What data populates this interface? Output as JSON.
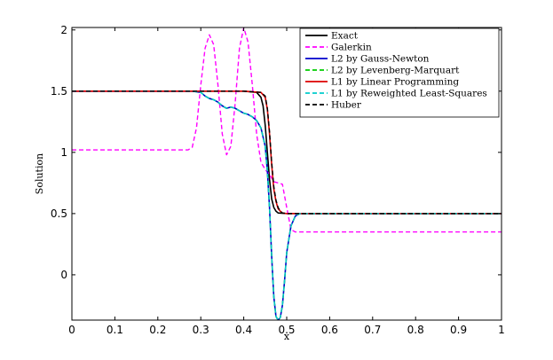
{
  "chart_data": {
    "type": "line",
    "xlabel": "x",
    "ylabel": "Solution",
    "xlim": [
      0,
      1
    ],
    "ylim": [
      -0.37,
      2.02
    ],
    "xticks": [
      "0",
      "0.1",
      "0.2",
      "0.3",
      "0.4",
      "0.5",
      "0.6",
      "0.7",
      "0.8",
      "0.9",
      "1"
    ],
    "yticks": [
      "0",
      "0.5",
      "1",
      "1.5",
      "2"
    ],
    "grid": false,
    "legend_position": "top-right",
    "series": [
      {
        "name": "Exact",
        "color": "#000000",
        "dash": "solid",
        "x": [
          0,
          0.1,
          0.2,
          0.3,
          0.4,
          0.43,
          0.44,
          0.445,
          0.45,
          0.455,
          0.46,
          0.465,
          0.47,
          0.475,
          0.48,
          0.5,
          0.6,
          0.8,
          1.0
        ],
        "y": [
          1.5,
          1.5,
          1.5,
          1.5,
          1.5,
          1.49,
          1.45,
          1.38,
          1.22,
          1.0,
          0.78,
          0.62,
          0.55,
          0.52,
          0.505,
          0.5,
          0.5,
          0.5,
          0.5
        ]
      },
      {
        "name": "Galerkin",
        "color": "#ff00ff",
        "dash": "dashed",
        "x": [
          0,
          0.1,
          0.2,
          0.27,
          0.28,
          0.29,
          0.3,
          0.31,
          0.32,
          0.33,
          0.34,
          0.35,
          0.36,
          0.37,
          0.38,
          0.39,
          0.4,
          0.41,
          0.42,
          0.43,
          0.44,
          0.45,
          0.46,
          0.47,
          0.48,
          0.49,
          0.5,
          0.51,
          0.52,
          0.6,
          0.8,
          1.0
        ],
        "y": [
          1.02,
          1.02,
          1.02,
          1.02,
          1.04,
          1.2,
          1.55,
          1.85,
          1.96,
          1.88,
          1.55,
          1.15,
          0.98,
          1.05,
          1.4,
          1.85,
          2.02,
          1.9,
          1.55,
          1.15,
          0.92,
          0.86,
          0.82,
          0.76,
          0.75,
          0.74,
          0.55,
          0.37,
          0.35,
          0.35,
          0.35,
          0.35
        ]
      },
      {
        "name": "L2 by Gauss-Newton",
        "color": "#0000cc",
        "dash": "solid",
        "x": [
          0,
          0.1,
          0.2,
          0.28,
          0.3,
          0.31,
          0.32,
          0.33,
          0.34,
          0.35,
          0.36,
          0.37,
          0.38,
          0.39,
          0.4,
          0.41,
          0.42,
          0.43,
          0.44,
          0.45,
          0.455,
          0.46,
          0.465,
          0.47,
          0.475,
          0.48,
          0.485,
          0.49,
          0.495,
          0.5,
          0.51,
          0.52,
          0.53,
          0.55,
          0.6,
          0.8,
          1.0
        ],
        "y": [
          1.5,
          1.5,
          1.5,
          1.5,
          1.49,
          1.46,
          1.44,
          1.43,
          1.41,
          1.38,
          1.36,
          1.37,
          1.36,
          1.34,
          1.32,
          1.31,
          1.29,
          1.26,
          1.2,
          1.05,
          0.85,
          0.55,
          0.15,
          -0.18,
          -0.34,
          -0.37,
          -0.35,
          -0.25,
          -0.05,
          0.18,
          0.4,
          0.48,
          0.5,
          0.5,
          0.5,
          0.5,
          0.5
        ]
      },
      {
        "name": "L2 by Levenberg-Marquart",
        "color": "#00cc00",
        "dash": "dashed",
        "x": [
          0,
          0.1,
          0.2,
          0.28,
          0.3,
          0.31,
          0.32,
          0.33,
          0.34,
          0.35,
          0.36,
          0.37,
          0.38,
          0.39,
          0.4,
          0.41,
          0.42,
          0.43,
          0.44,
          0.45,
          0.455,
          0.46,
          0.465,
          0.47,
          0.475,
          0.48,
          0.485,
          0.49,
          0.495,
          0.5,
          0.51,
          0.52,
          0.53,
          0.55,
          0.6,
          0.8,
          1.0
        ],
        "y": [
          1.5,
          1.5,
          1.5,
          1.5,
          1.49,
          1.46,
          1.44,
          1.43,
          1.41,
          1.38,
          1.36,
          1.37,
          1.36,
          1.34,
          1.32,
          1.31,
          1.29,
          1.26,
          1.2,
          1.05,
          0.85,
          0.55,
          0.15,
          -0.18,
          -0.34,
          -0.37,
          -0.35,
          -0.25,
          -0.05,
          0.18,
          0.4,
          0.48,
          0.5,
          0.5,
          0.5,
          0.5,
          0.5
        ]
      },
      {
        "name": "L1 by Linear Programming",
        "color": "#dd0000",
        "dash": "solid",
        "x": [
          0,
          0.1,
          0.2,
          0.3,
          0.4,
          0.44,
          0.45,
          0.455,
          0.46,
          0.465,
          0.47,
          0.475,
          0.48,
          0.485,
          0.49,
          0.5,
          0.6,
          0.8,
          1.0
        ],
        "y": [
          1.5,
          1.5,
          1.5,
          1.5,
          1.5,
          1.49,
          1.45,
          1.35,
          1.15,
          0.9,
          0.7,
          0.6,
          0.54,
          0.52,
          0.505,
          0.5,
          0.5,
          0.5,
          0.5
        ]
      },
      {
        "name": "L1 by Reweighted Least-Squares",
        "color": "#00cccc",
        "dash": "dashed",
        "x": [
          0,
          0.1,
          0.2,
          0.28,
          0.3,
          0.31,
          0.32,
          0.33,
          0.34,
          0.35,
          0.36,
          0.37,
          0.38,
          0.39,
          0.4,
          0.41,
          0.42,
          0.43,
          0.44,
          0.45,
          0.455,
          0.46,
          0.465,
          0.47,
          0.475,
          0.48,
          0.485,
          0.49,
          0.495,
          0.5,
          0.51,
          0.52,
          0.53,
          0.55,
          0.6,
          0.8,
          1.0
        ],
        "y": [
          1.5,
          1.5,
          1.5,
          1.5,
          1.49,
          1.46,
          1.44,
          1.43,
          1.41,
          1.38,
          1.36,
          1.37,
          1.36,
          1.34,
          1.32,
          1.31,
          1.29,
          1.26,
          1.2,
          1.05,
          0.85,
          0.55,
          0.15,
          -0.18,
          -0.34,
          -0.37,
          -0.35,
          -0.25,
          -0.05,
          0.18,
          0.4,
          0.48,
          0.5,
          0.5,
          0.5,
          0.5,
          0.5
        ]
      },
      {
        "name": "Huber",
        "color": "#000000",
        "dash": "dashed",
        "x": [
          0,
          0.1,
          0.2,
          0.3,
          0.4,
          0.44,
          0.45,
          0.455,
          0.46,
          0.465,
          0.47,
          0.475,
          0.48,
          0.485,
          0.49,
          0.5,
          0.6,
          0.8,
          1.0
        ],
        "y": [
          1.5,
          1.5,
          1.5,
          1.5,
          1.5,
          1.49,
          1.46,
          1.36,
          1.17,
          0.92,
          0.72,
          0.61,
          0.55,
          0.52,
          0.505,
          0.5,
          0.5,
          0.5,
          0.5
        ]
      }
    ]
  }
}
